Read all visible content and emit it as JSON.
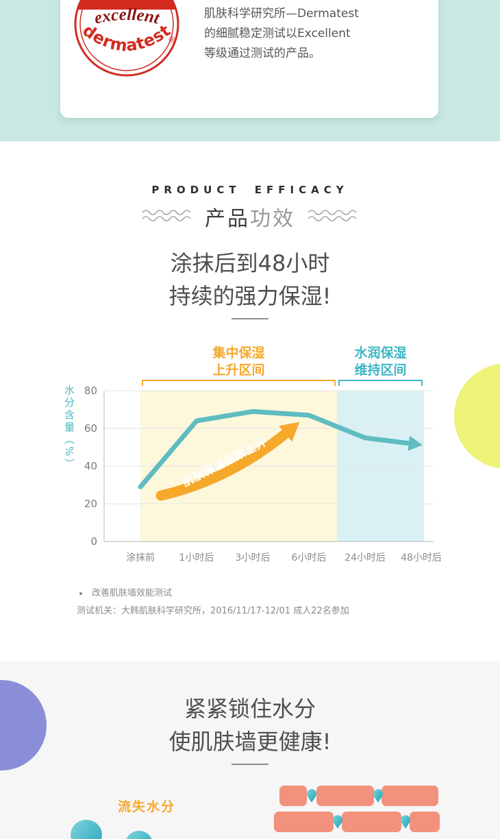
{
  "colors": {
    "mint_bg": "#c9e7e3",
    "seal_red": "#d32b20",
    "teal": "#5fbcc1",
    "orange": "#f6a82b",
    "region_yellow": "#fdf7dc",
    "region_blue": "#d9f1f4",
    "gray_bg": "#f6f6f6",
    "circle_yellow": "#eef276",
    "circle_purple": "#8a8ed8",
    "brick": "#f2917c",
    "drop": "#2aafc0"
  },
  "header_card": {
    "seal_text_top": "excellent",
    "seal_text_bottom": "dermatest",
    "seal_reg_mark": "®",
    "line1": "肌肤科学研究所—Dermatest",
    "line2": "的细腻稳定测试以Excellent",
    "line3": "等级通过测试的产品。"
  },
  "efficacy": {
    "eyebrow": "PRODUCT EFFICACY",
    "title_dark": "产品",
    "title_light": "功效",
    "heading_line1": "涂抹后到48小时",
    "heading_line2": "持续的强力保湿!",
    "note1": "改善肌肤墙效能测试",
    "note2": "测试机关：大韩肌肤科学研究所，2016/11/17-12/01 成人22名参加"
  },
  "chart_data": {
    "type": "line",
    "title": "涂抹后到48小时持续的强力保湿",
    "categories": [
      "涂抹前",
      "1小时后",
      "3小时后",
      "6小时后",
      "24小时后",
      "48小时后"
    ],
    "values": [
      29,
      64,
      69,
      67,
      55,
      52
    ],
    "xlabel": "",
    "ylabel": "水分含量（%）",
    "ylim": [
      0,
      80
    ],
    "yticks": [
      0,
      20,
      40,
      60,
      80
    ],
    "grid": true,
    "legend": "none",
    "line_color": "#5fbcc1",
    "annotation": "肌肤保湿指数上升",
    "regions": [
      {
        "label_line1": "集中保湿",
        "label_line2": "上升区间",
        "from": 0,
        "to": 3.5,
        "fill": "#fdf7dc",
        "color": "#f6a82b"
      },
      {
        "label_line1": "水润保湿",
        "label_line2": "维持区间",
        "from": 3.5,
        "to": 5.05,
        "fill": "#d9f1f4",
        "color": "#3fb6c4"
      }
    ]
  },
  "lock_section": {
    "heading_line1": "紧紧锁住水分",
    "heading_line2": "使肌肤墙更健康!",
    "loss_label": "流失水分"
  }
}
